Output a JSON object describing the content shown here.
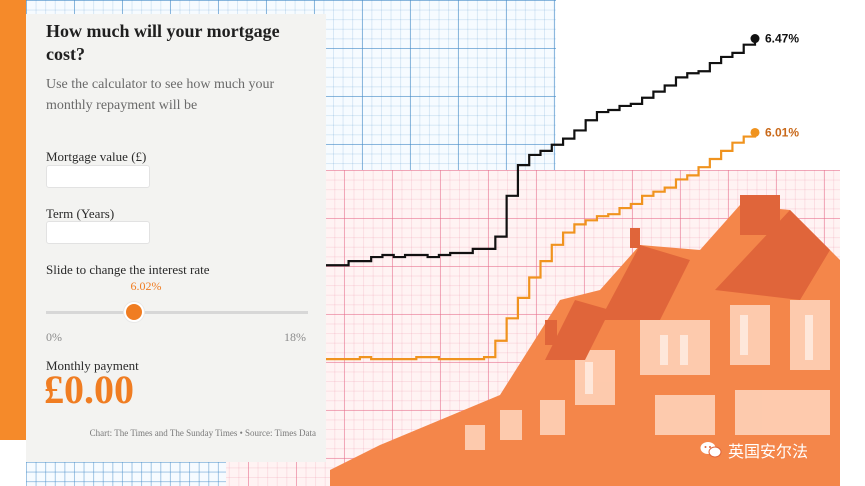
{
  "card": {
    "title": "How much will your mortgage cost?",
    "subtitle": "Use the calculator to see how much your monthly repayment will be",
    "mortgage_label": "Mortgage value (£)",
    "mortgage_value": "",
    "term_label": "Term (Years)",
    "term_value": "",
    "slider_label": "Slide to change the interest rate",
    "slider_value": "6.02%",
    "slider_min": "0%",
    "slider_max": "18%",
    "slider_fraction": 0.3344,
    "payment_label": "Monthly payment",
    "payment_value": "£0.00",
    "credit": "Chart: The Times and The Sunday Times • Source: Times Data"
  },
  "watermark": {
    "text": "英国安尔法",
    "icon": "wechat-icon"
  },
  "colors": {
    "accent": "#f07d22",
    "black_line": "#111111",
    "orange_line": "#f0931e"
  },
  "chart_data": {
    "type": "line",
    "series": [
      {
        "values": [
          5.36,
          5.36,
          5.38,
          5.38,
          5.4,
          5.41,
          5.4,
          5.41,
          5.41,
          5.4,
          5.41,
          5.42,
          5.42,
          5.44,
          5.44,
          5.5,
          5.7,
          5.85,
          5.9,
          5.92,
          5.95,
          5.98,
          6.02,
          6.07,
          6.11,
          6.12,
          6.14,
          6.15,
          6.18,
          6.21,
          6.24,
          6.28,
          6.3,
          6.31,
          6.35,
          6.38,
          6.4,
          6.44,
          6.47
        ],
        "end_label": "6.47%"
      },
      {
        "values": [
          4.9,
          4.9,
          4.9,
          4.91,
          4.9,
          4.9,
          4.9,
          4.9,
          4.91,
          4.91,
          4.9,
          4.9,
          4.9,
          4.9,
          4.91,
          4.99,
          5.1,
          5.2,
          5.3,
          5.38,
          5.46,
          5.52,
          5.56,
          5.58,
          5.6,
          5.61,
          5.64,
          5.66,
          5.7,
          5.72,
          5.74,
          5.78,
          5.8,
          5.84,
          5.88,
          5.92,
          5.96,
          5.99,
          6.01
        ],
        "end_label": "6.01%"
      }
    ],
    "ylim": [
      4.7,
      6.6
    ]
  }
}
